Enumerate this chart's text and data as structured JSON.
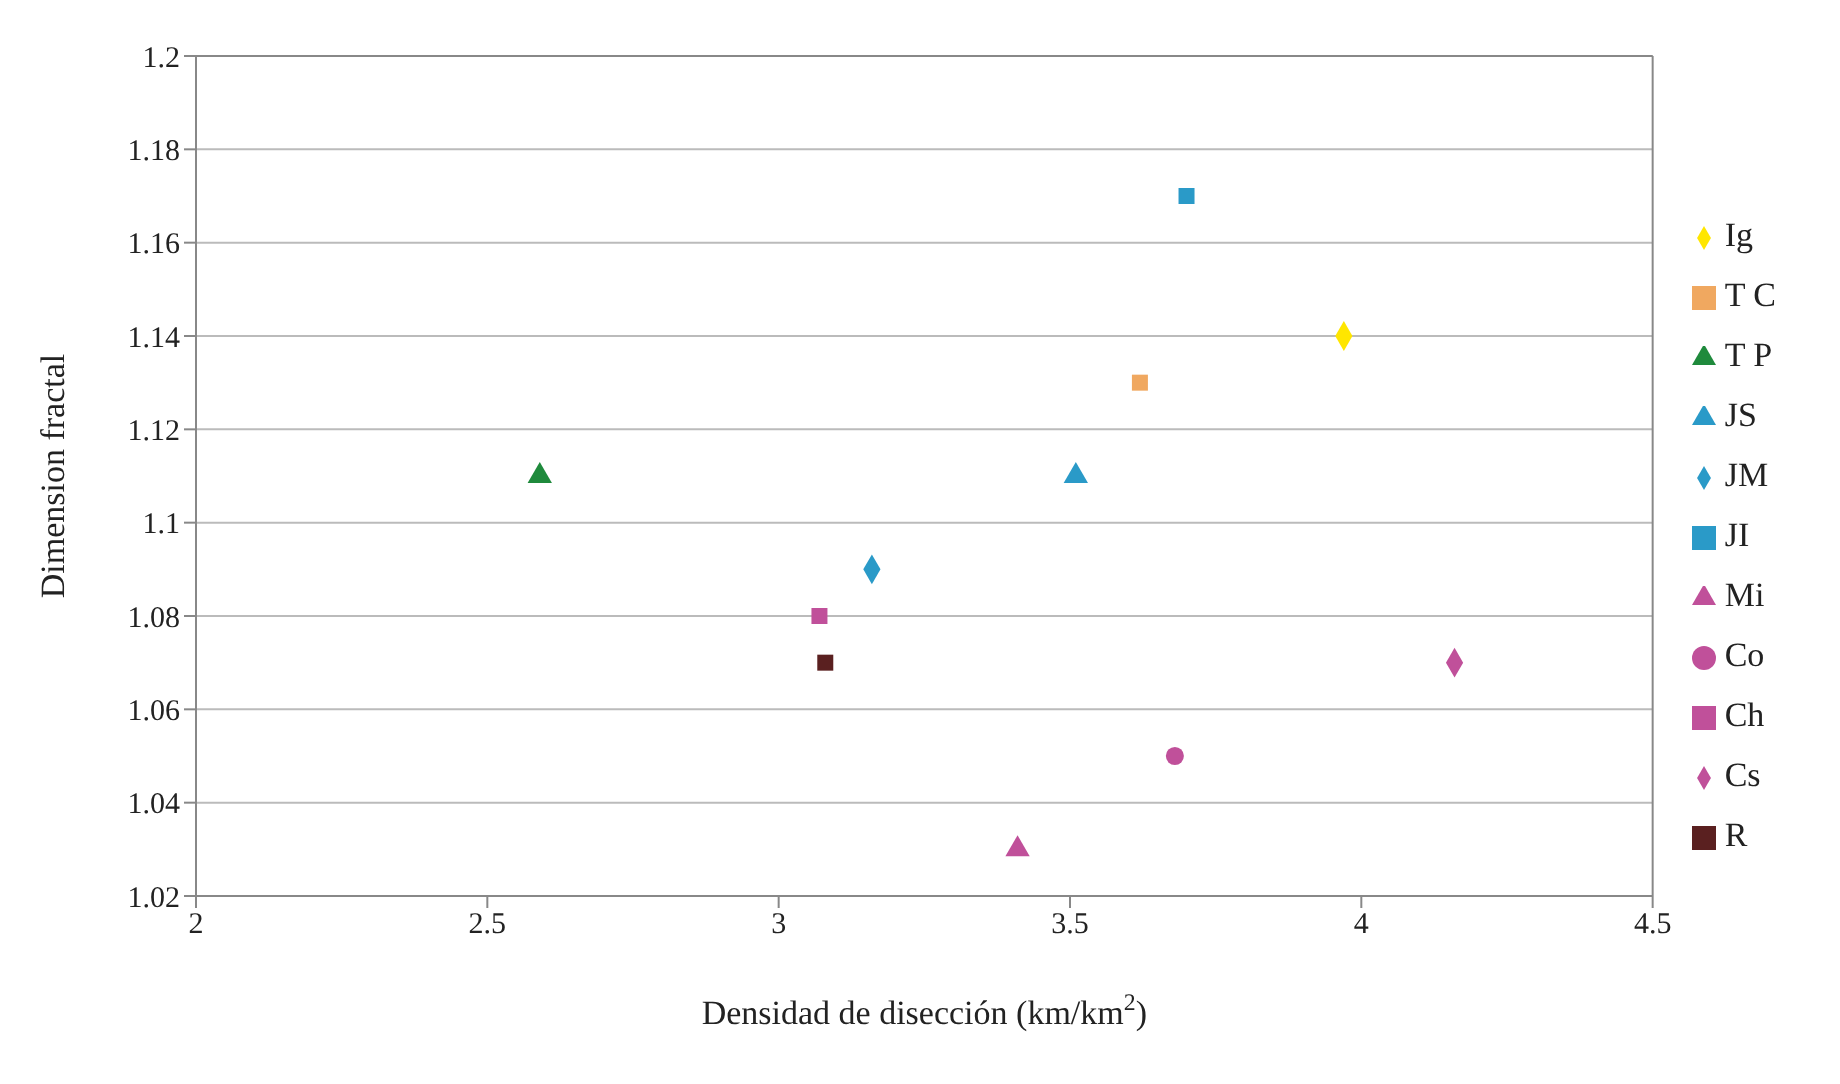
{
  "chart_data": {
    "type": "scatter",
    "xlabel": "Densidad de disección (km/km$^{2}$)",
    "ylabel": "Dimension fractal",
    "xlim": [
      2,
      4.5
    ],
    "xticks": [
      2,
      2.5,
      3,
      3.5,
      4,
      4.5
    ],
    "ylim": [
      1.02,
      1.2
    ],
    "yticks": [
      1.02,
      1.04,
      1.06,
      1.08,
      1.1,
      1.12,
      1.14,
      1.16,
      1.18,
      1.2
    ],
    "grid": "y",
    "legend": "right",
    "series": [
      {
        "name": "Ig",
        "color": "#ffe600",
        "marker": "diamond",
        "x": [
          3.97
        ],
        "values": [
          1.14
        ]
      },
      {
        "name": "T C",
        "color": "#f0a860",
        "marker": "square",
        "x": [
          3.62
        ],
        "values": [
          1.13
        ]
      },
      {
        "name": "T P",
        "color": "#1f8a3c",
        "marker": "triangle",
        "x": [
          2.59
        ],
        "values": [
          1.11
        ]
      },
      {
        "name": "JS",
        "color": "#2a9ac8",
        "marker": "triangle",
        "x": [
          3.51
        ],
        "values": [
          1.11
        ]
      },
      {
        "name": "JM",
        "color": "#2a9ac8",
        "marker": "diamond",
        "x": [
          3.16
        ],
        "values": [
          1.09
        ]
      },
      {
        "name": "JI",
        "color": "#2a9ac8",
        "marker": "square",
        "x": [
          3.7
        ],
        "values": [
          1.17
        ]
      },
      {
        "name": "Mi",
        "color": "#c0509a",
        "marker": "triangle",
        "x": [
          3.41
        ],
        "values": [
          1.03
        ]
      },
      {
        "name": "Co",
        "color": "#c0509a",
        "marker": "circle",
        "x": [
          3.68
        ],
        "values": [
          1.05
        ]
      },
      {
        "name": "Ch",
        "color": "#c0509a",
        "marker": "square",
        "x": [
          3.07
        ],
        "values": [
          1.08
        ]
      },
      {
        "name": "Cs",
        "color": "#c0509a",
        "marker": "diamond",
        "x": [
          4.16
        ],
        "values": [
          1.07
        ]
      },
      {
        "name": "R",
        "color": "#5a2020",
        "marker": "square",
        "x": [
          3.08
        ],
        "values": [
          1.07
        ]
      }
    ]
  }
}
